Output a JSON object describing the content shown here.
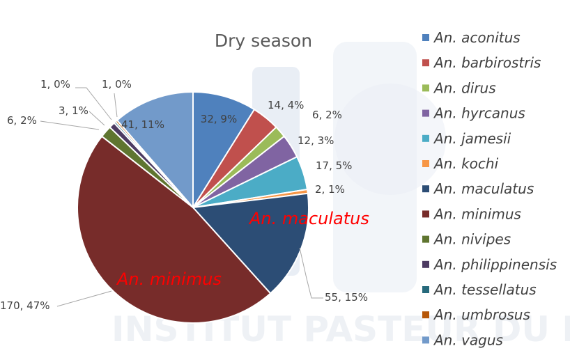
{
  "colors": {
    "An. aconitus": "#4f81bd",
    "An. barbirostris": "#c0504d",
    "An. dirus": "#9bbb59",
    "An. hyrcanus": "#8064a2",
    "An. jamesii": "#4bacc6",
    "An. kochi": "#f79646",
    "An. maculatus": "#2c4d75",
    "An. minimus": "#772c2a",
    "An. nivipes": "#5f7530",
    "An. philippinensis": "#4d3b62",
    "An. tessellatus": "#276a7c",
    "An. umbrosus": "#b65708",
    "An. vagus": "#729aca"
  },
  "chart_data": {
    "type": "pie",
    "title": "Dry season",
    "categories": [
      "An. aconitus",
      "An. barbirostris",
      "An. dirus",
      "An. hyrcanus",
      "An. jamesii",
      "An. kochi",
      "An. maculatus",
      "An. minimus",
      "An. nivipes",
      "An. philippinensis",
      "An. tessellatus",
      "An. umbrosus",
      "An. vagus"
    ],
    "values": [
      32,
      14,
      6,
      12,
      17,
      2,
      55,
      170,
      6,
      3,
      1,
      1,
      41
    ],
    "labels": [
      "32, 9%",
      "14, 4%",
      "6, 2%",
      "12, 3%",
      "17, 5%",
      "2, 1%",
      "55, 15%",
      "170, 47%",
      "6, 2%",
      "3, 1%",
      "1, 0%",
      "1, 0%",
      "41, 11%"
    ],
    "legend_position": "right",
    "annotations": [
      "An. maculatus",
      "An. minimus"
    ]
  }
}
